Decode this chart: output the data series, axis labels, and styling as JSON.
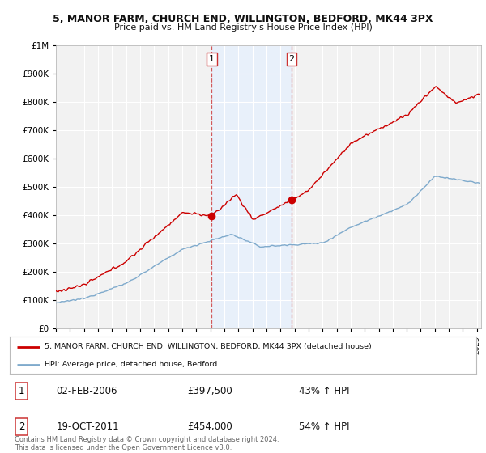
{
  "title": "5, MANOR FARM, CHURCH END, WILLINGTON, BEDFORD, MK44 3PX",
  "subtitle": "Price paid vs. HM Land Registry's House Price Index (HPI)",
  "legend_property": "5, MANOR FARM, CHURCH END, WILLINGTON, BEDFORD, MK44 3PX (detached house)",
  "legend_hpi": "HPI: Average price, detached house, Bedford",
  "transaction1_date": "02-FEB-2006",
  "transaction1_price": 397500,
  "transaction1_label": "43% ↑ HPI",
  "transaction1_x": 2006.1,
  "transaction2_date": "19-OCT-2011",
  "transaction2_price": 454000,
  "transaction2_label": "54% ↑ HPI",
  "transaction2_x": 2011.8,
  "copyright_text": "Contains HM Land Registry data © Crown copyright and database right 2024.\nThis data is licensed under the Open Government Licence v3.0.",
  "property_color": "#cc0000",
  "hpi_color": "#7faacc",
  "shade_color": "#ddeeff",
  "ylim_max": 1000000,
  "xlim_min": 1995.0,
  "xlim_max": 2025.3,
  "plot_bg": "#f2f2f2",
  "grid_color": "#ffffff"
}
